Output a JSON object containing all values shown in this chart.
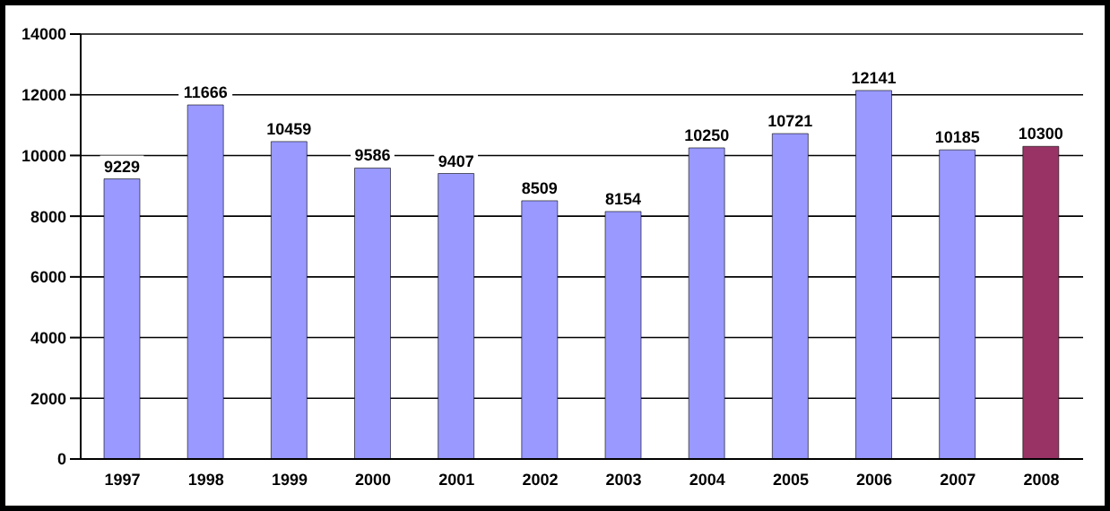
{
  "chart_data": {
    "type": "bar",
    "categories": [
      "1997",
      "1998",
      "1999",
      "2000",
      "2001",
      "2002",
      "2003",
      "2004",
      "2005",
      "2006",
      "2007",
      "2008"
    ],
    "values": [
      9229,
      11666,
      10459,
      9586,
      9407,
      8509,
      8154,
      10250,
      10721,
      12141,
      10185,
      10300
    ],
    "colors": [
      "#9999ff",
      "#9999ff",
      "#9999ff",
      "#9999ff",
      "#9999ff",
      "#9999ff",
      "#9999ff",
      "#9999ff",
      "#9999ff",
      "#9999ff",
      "#9999ff",
      "#993366"
    ],
    "ylim": [
      0,
      14000
    ],
    "yticks": [
      0,
      2000,
      4000,
      6000,
      8000,
      10000,
      12000,
      14000
    ],
    "grid": "y",
    "data_labels": true
  }
}
